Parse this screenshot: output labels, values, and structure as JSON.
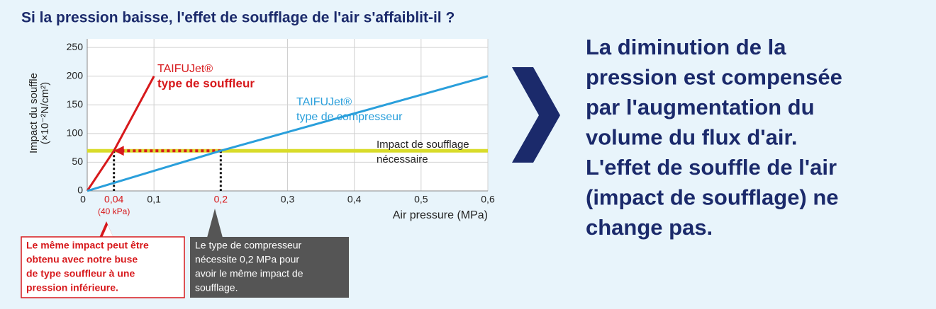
{
  "header": {
    "title": "Si la pression baisse, l'effet de soufflage de l'air s'affaiblit-il ?"
  },
  "chart_data": {
    "type": "line",
    "x_label": "Air pressure (MPa)",
    "y_label": [
      "Impact du souffle",
      "(×10⁻²N/cm²)"
    ],
    "xlim": [
      0,
      0.6
    ],
    "ylim": [
      0,
      265
    ],
    "xticks": [
      0,
      {
        "value": 0.04,
        "label": "0,04"
      },
      {
        "value": 0.1,
        "label": "0,1"
      },
      {
        "value": 0.2,
        "label": "0,2"
      },
      {
        "value": 0.3,
        "label": "0,3"
      },
      {
        "value": 0.4,
        "label": "0,4"
      },
      {
        "value": 0.5,
        "label": "0,5"
      },
      {
        "value": 0.6,
        "label": "0,6"
      }
    ],
    "yticks": [
      0,
      50,
      100,
      150,
      200,
      250
    ],
    "grid": true,
    "highlight_x": [
      0.04,
      0.2
    ],
    "highlight_color": "#d7191c",
    "kpa_note": "(40 kPa)",
    "series": [
      {
        "name": "TAIFUJet®",
        "label": "type de souffleur",
        "color": "#d7191c",
        "x": [
          0,
          0.04,
          0.1
        ],
        "values": [
          0,
          70,
          200
        ]
      },
      {
        "name": "TAIFUJet®",
        "label": "type de compresseur",
        "color": "#2a9fdb",
        "x": [
          0,
          0.2,
          0.6
        ],
        "values": [
          0,
          70,
          200
        ]
      }
    ],
    "reference_line": {
      "value": 70,
      "color": "#d9dc2a",
      "label": [
        "Impact de soufflage",
        "nécessaire"
      ]
    }
  },
  "annotations": {
    "blower": [
      "Le même impact peut être",
      "obtenu avec notre buse",
      "de type souffleur à une",
      "pression inférieure."
    ],
    "compressor": [
      "Le type de compresseur",
      "nécessite 0,2 MPa pour",
      "avoir le même impact de",
      "soufflage."
    ]
  },
  "conclusion": [
    "La diminution de la",
    "pression est compensée",
    "par l'augmentation du",
    "volume du flux d'air.",
    "L'effet de souffle de l'air",
    "(impact de soufflage) ne",
    "change pas."
  ]
}
